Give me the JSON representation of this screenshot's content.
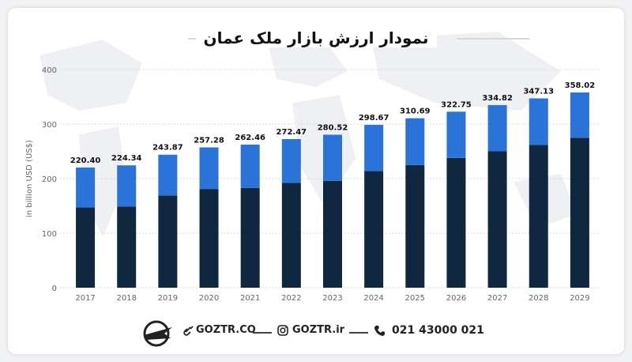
{
  "title": "نمودار ارزش بازار ملک عمان",
  "chart_data": {
    "type": "bar",
    "stacked": true,
    "categories": [
      "2017",
      "2018",
      "2019",
      "2020",
      "2021",
      "2022",
      "2023",
      "2024",
      "2025",
      "2026",
      "2027",
      "2028",
      "2029"
    ],
    "totals": [
      220.4,
      224.34,
      243.87,
      257.28,
      262.46,
      272.47,
      280.52,
      298.67,
      310.69,
      322.75,
      334.82,
      347.13,
      358.02
    ],
    "total_labels": [
      "220.40",
      "224.34",
      "243.87",
      "257.28",
      "262.46",
      "272.47",
      "280.52",
      "298.67",
      "310.69",
      "322.75",
      "334.82",
      "347.13",
      "358.02"
    ],
    "series": [
      {
        "values": [
          147,
          149,
          169,
          181,
          183,
          192,
          196,
          214,
          225,
          238,
          250,
          262,
          275
        ]
      },
      {
        "values": [
          73.4,
          75.34,
          74.87,
          76.28,
          79.46,
          80.47,
          84.52,
          84.67,
          85.69,
          84.75,
          84.82,
          85.13,
          83.02
        ]
      }
    ],
    "ylabel": "in billion USD (US$)",
    "ylim": [
      0,
      400
    ],
    "yticks": [
      "0",
      "100",
      "200",
      "300",
      "400"
    ],
    "grid": true,
    "colors": {
      "dark": "#102740",
      "light": "#2a74d9",
      "grid": "#dcdcdc",
      "tick": "#666666"
    }
  },
  "footer": {
    "site": "GOZTR.CO",
    "instagram": "GOZTR.ir",
    "phone": "021 43000 021"
  },
  "icons": {
    "link": "link-icon",
    "instagram": "instagram-icon",
    "phone": "phone-icon",
    "logo": "plane-globe-logo"
  }
}
